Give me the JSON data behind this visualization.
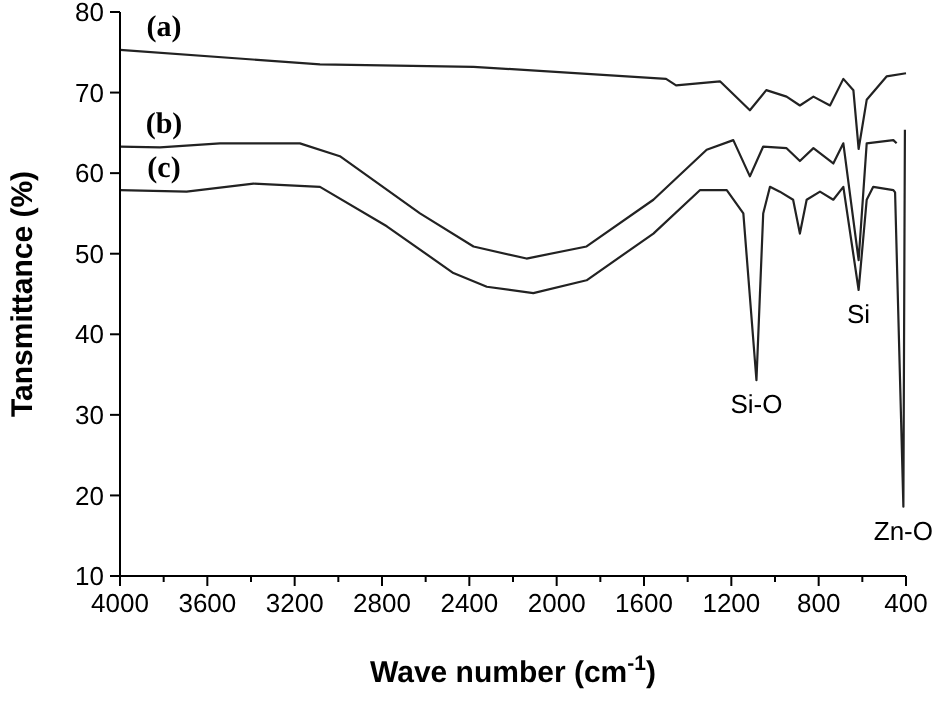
{
  "chart_data": {
    "type": "line",
    "xlabel": "Wave number (cm$^{-1}$)",
    "ylabel": "Tansmittance (%)",
    "xlim": [
      4000,
      400
    ],
    "ylim": [
      10,
      80
    ],
    "xticks": [
      4000,
      {
        "value": 3800,
        "label": null
      },
      3600,
      {
        "value": 3400,
        "label": null
      },
      3200,
      {
        "value": 3000,
        "label": null
      },
      2800,
      {
        "value": 2600,
        "label": null
      },
      2400,
      {
        "value": 2200,
        "label": null
      },
      2000,
      {
        "value": 1800,
        "label": null
      },
      1600,
      {
        "value": 1400,
        "label": null
      },
      1200,
      {
        "value": 1000,
        "label": null
      },
      800,
      {
        "value": 600,
        "label": null
      },
      400
    ],
    "yticks": [
      10,
      20,
      30,
      40,
      50,
      60,
      70,
      80
    ],
    "grid": false,
    "marker": "none",
    "line_style": "solid",
    "series": [
      {
        "name": "(a)",
        "color": "#222222",
        "x": [
          4000,
          3084,
          2381,
          1499,
          1453,
          1252,
          1115,
          1040,
          947,
          886,
          824,
          748,
          687,
          641,
          617,
          580,
          489,
          400
        ],
        "values": [
          75.3,
          73.5,
          73.2,
          71.7,
          70.9,
          71.4,
          67.8,
          70.3,
          69.5,
          68.4,
          69.5,
          68.4,
          71.7,
          70.3,
          63,
          69.1,
          72,
          72.4
        ]
      },
      {
        "name": "(b)",
        "color": "#222222",
        "x": [
          4000,
          3817,
          3542,
          3176,
          2993,
          2626,
          2381,
          2138,
          1863,
          1557,
          1313,
          1191,
          1115,
          1054,
          947,
          886,
          824,
          733,
          687,
          617,
          580,
          458,
          443
        ],
        "values": [
          63.3,
          63.2,
          63.7,
          63.7,
          62.1,
          55,
          50.9,
          49.4,
          50.9,
          56.7,
          62.9,
          64.1,
          59.6,
          63.3,
          63.1,
          61.5,
          63.1,
          61.2,
          63.7,
          49.2,
          63.7,
          64.1,
          63.7
        ]
      },
      {
        "name": "(c)",
        "color": "#222222",
        "x": [
          4000,
          3695,
          3389,
          3084,
          2778,
          2473,
          2320,
          2107,
          1863,
          1557,
          1343,
          1221,
          1145,
          1085,
          1054,
          1023,
          978,
          917,
          886,
          855,
          794,
          733,
          687,
          617,
          580,
          550,
          458,
          450,
          412,
          405
        ],
        "values": [
          57.9,
          57.7,
          58.7,
          58.3,
          53.4,
          47.6,
          45.9,
          45.1,
          46.7,
          52.5,
          57.9,
          57.9,
          55,
          34.3,
          55,
          58.3,
          57.7,
          56.7,
          52.5,
          56.7,
          57.7,
          56.7,
          58.3,
          45.5,
          56.7,
          58.3,
          57.9,
          57.6,
          18.6,
          65.4
        ]
      }
    ],
    "annotations": [
      {
        "text": "Si-O",
        "x": 1085,
        "y": 34.3
      },
      {
        "text": "Si",
        "x": 617,
        "y": 45.5
      },
      {
        "text": "Zn-O",
        "x": 412,
        "y": 18.6
      }
    ]
  }
}
